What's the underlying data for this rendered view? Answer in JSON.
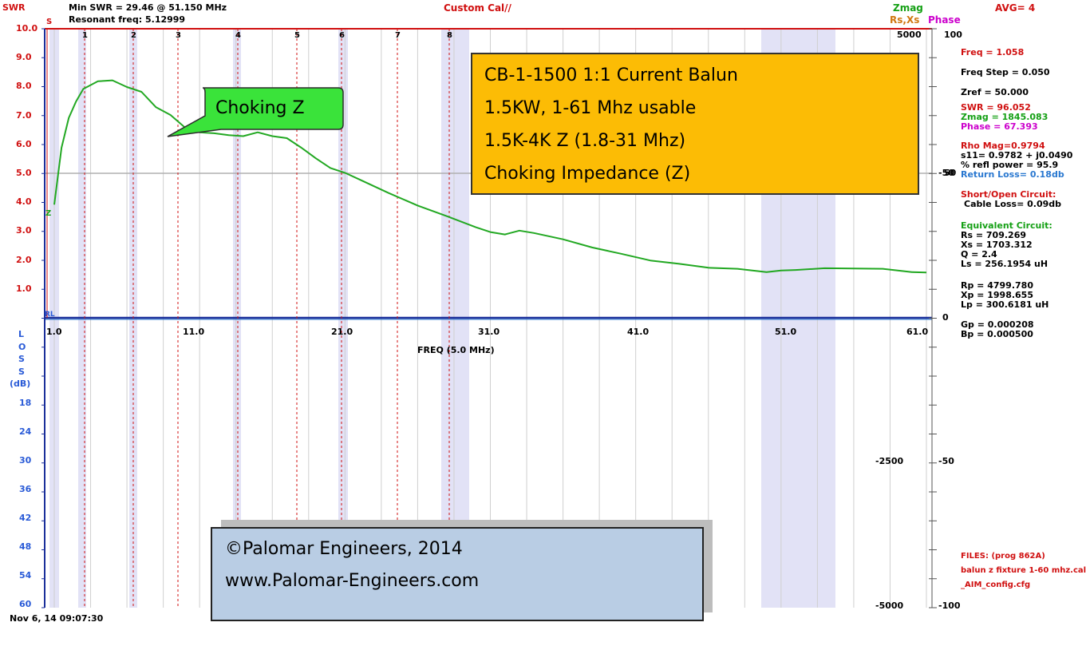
{
  "header": {
    "min_swr": "Min SWR =  29.46 @  51.150 MHz",
    "resonant": "Resonant freq:  5.12999",
    "title": "Custom Cal//",
    "zmag": "Zmag",
    "rsxs": "Rs,Xs",
    "phase": "Phase",
    "avg": "AVG=  4",
    "swr": "SWR",
    "s": "S",
    "z_marker": "Z",
    "rl_marker": "RL"
  },
  "swr_axis": [
    "10.0",
    "9.0",
    "8.0",
    "7.0",
    "6.0",
    "5.0",
    "4.0",
    "3.0",
    "2.0",
    "1.0"
  ],
  "loss_axis": {
    "letters": [
      "L",
      "O",
      "S",
      "S"
    ],
    "unit": "(dB)",
    "ticks": [
      "18",
      "24",
      "30",
      "36",
      "42",
      "48",
      "54",
      "60"
    ]
  },
  "freq_axis": {
    "ticks": [
      "1.0",
      "11.0",
      "21.0",
      "31.0",
      "41.0",
      "51.0",
      "61.0"
    ],
    "label": "FREQ (5.0 MHz)"
  },
  "right_axis1": [
    "5000",
    "-50",
    "-2500",
    "-5000"
  ],
  "right_axis2": [
    "100",
    "50",
    "0",
    "-50",
    "-100"
  ],
  "markers": [
    "1",
    "2",
    "3",
    "4",
    "5",
    "6",
    "7",
    "8"
  ],
  "timestamp": "Nov 6, 14  09:07:30",
  "callout": "Choking Z",
  "info_box": [
    "CB-1-1500 1:1 Current Balun",
    "1.5KW, 1-61 Mhz usable",
    "1.5K-4K Z (1.8-31 Mhz)",
    "Choking Impedance (Z)"
  ],
  "copyright": [
    "©Palomar Engineers, 2014",
    "www.Palomar-Engineers.com"
  ],
  "panel": {
    "freq": "Freq = 1.058",
    "freq_step": "Freq Step = 0.050",
    "zref": "Zref =   50.000",
    "swr": "SWR  =  96.052",
    "zmag": "Zmag = 1845.083",
    "phase": "Phase =   67.393",
    "rho": "Rho Mag=0.9794",
    "s11": "s11= 0.9782 + j0.0490",
    "refl": "% refl power = 95.9",
    "return_loss": "Return Loss=  0.18db",
    "short_open": "Short/Open Circuit:",
    "cable_loss": "  Cable Loss=  0.09db",
    "equiv": "Equivalent Circuit:",
    "rs": "Rs =  709.269",
    "xs": "Xs = 1703.312",
    "q": "Q =  2.4",
    "ls": "Ls =  256.1954 uH",
    "rp": "Rp = 4799.780",
    "xp": "Xp = 1998.655",
    "lp": "Lp =  300.6181  uH",
    "gp": "Gp =  0.000208",
    "bp": "Bp =  0.000500",
    "files": "FILES:  (prog 862A)",
    "file1": "balun z fixture 1-60 mhz.cal",
    "file2": "_AIM_config.cfg"
  },
  "chart_data": {
    "type": "line",
    "x_unit": "MHz",
    "xlim": [
      1,
      61
    ],
    "ylim": [
      0,
      10
    ],
    "series": [
      {
        "name": "Zmag",
        "color": "#22a822",
        "x": [
          1.0,
          1.5,
          2.0,
          2.5,
          3.0,
          4.0,
          5.0,
          6.0,
          7.0,
          8.0,
          9.0,
          10.0,
          11.0,
          12.0,
          13.0,
          14.0,
          15.0,
          16.0,
          17.0,
          18.0,
          19.0,
          20.0,
          21.0,
          22.0,
          24.0,
          26.0,
          28.0,
          30.0,
          31.0,
          32.0,
          33.0,
          34.0,
          36.0,
          38.0,
          40.0,
          42.0,
          44.0,
          46.0,
          48.0,
          50.0,
          51.0,
          52.0,
          54.0,
          56.0,
          58.0,
          60.0,
          61.0
        ],
        "y": [
          3.9,
          5.9,
          6.9,
          7.5,
          7.9,
          8.2,
          8.2,
          8.0,
          7.8,
          7.3,
          7.0,
          6.6,
          6.4,
          6.4,
          6.3,
          6.3,
          6.4,
          6.3,
          6.2,
          5.9,
          5.5,
          5.2,
          5.0,
          4.8,
          4.3,
          3.9,
          3.5,
          3.15,
          2.95,
          2.9,
          3.0,
          2.95,
          2.7,
          2.45,
          2.2,
          2.0,
          1.85,
          1.75,
          1.68,
          1.6,
          1.62,
          1.67,
          1.7,
          1.72,
          1.68,
          1.6,
          1.55
        ]
      }
    ]
  }
}
